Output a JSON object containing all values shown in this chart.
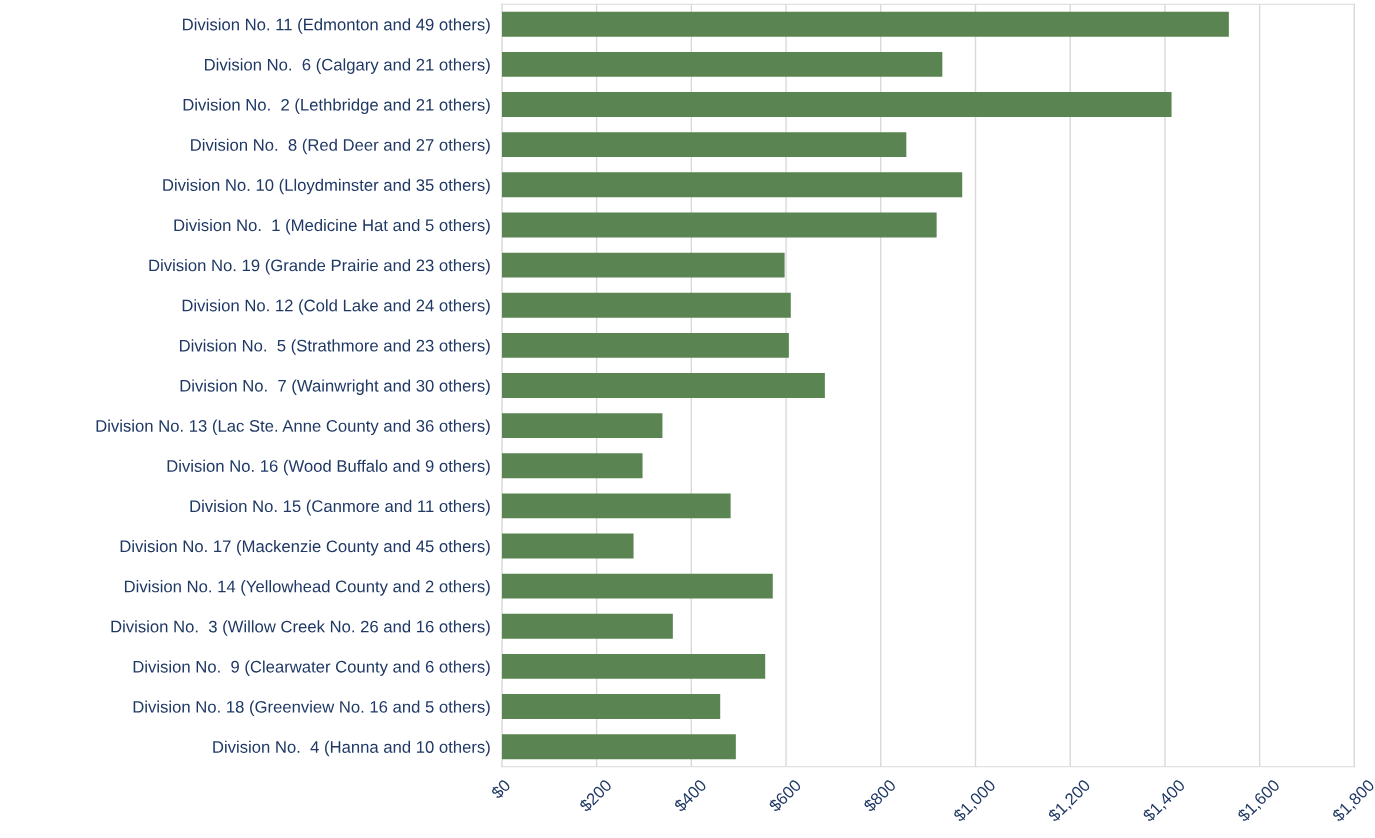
{
  "chart_data": {
    "type": "bar",
    "orientation": "horizontal",
    "categories": [
      "Division No. 11 (Edmonton and 49 others)",
      "Division No.  6 (Calgary and 21 others)",
      "Division No.  2 (Lethbridge and 21 others)",
      "Division No.  8 (Red Deer and 27 others)",
      "Division No. 10 (Lloydminster and 35 others)",
      "Division No.  1 (Medicine Hat and 5 others)",
      "Division No. 19 (Grande Prairie and 23 others)",
      "Division No. 12 (Cold Lake and 24 others)",
      "Division No.  5 (Strathmore and 23 others)",
      "Division No.  7 (Wainwright and 30 others)",
      "Division No. 13 (Lac Ste. Anne County and 36 others)",
      "Division No. 16 (Wood Buffalo and 9 others)",
      "Division No. 15 (Canmore and 11 others)",
      "Division No. 17 (Mackenzie County and 45 others)",
      "Division No. 14 (Yellowhead County and 2 others)",
      "Division No.  3 (Willow Creek No. 26 and 16 others)",
      "Division No.  9 (Clearwater County and 6 others)",
      "Division No. 18 (Greenview No. 16 and 5 others)",
      "Division No.  4 (Hanna and 10 others)"
    ],
    "values": [
      1535,
      930,
      1414,
      854,
      972,
      918,
      597,
      610,
      606,
      682,
      339,
      297,
      483,
      278,
      572,
      361,
      556,
      461,
      494
    ],
    "color": "#5a8552",
    "xlim": [
      0,
      1800
    ],
    "xticks": [
      {
        "value": 0,
        "label": "$0"
      },
      {
        "value": 200,
        "label": "$200"
      },
      {
        "value": 400,
        "label": "$400"
      },
      {
        "value": 600,
        "label": "$600"
      },
      {
        "value": 800,
        "label": "$800"
      },
      {
        "value": 1000,
        "label": "$1,000"
      },
      {
        "value": 1200,
        "label": "$1,200"
      },
      {
        "value": 1400,
        "label": "$1,400"
      },
      {
        "value": 1600,
        "label": "$1,600"
      },
      {
        "value": 1800,
        "label": "$1,800"
      }
    ],
    "grid": "x"
  }
}
